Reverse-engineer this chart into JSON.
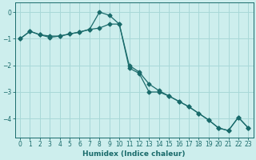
{
  "line1_x": [
    0,
    1,
    2,
    3,
    4,
    5,
    6,
    7,
    8,
    9,
    10,
    11,
    12,
    13,
    14,
    15,
    16,
    17,
    18,
    19,
    20,
    21,
    22,
    23
  ],
  "line1_y": [
    -1.0,
    -0.72,
    -0.85,
    -0.95,
    -0.9,
    -0.82,
    -0.75,
    -0.65,
    0.0,
    -0.12,
    -0.45,
    -2.1,
    -2.3,
    -3.0,
    -3.0,
    -3.15,
    -3.35,
    -3.55,
    -3.8,
    -4.05,
    -4.35,
    -4.45,
    -3.95,
    -4.35
  ],
  "line2_x": [
    0,
    1,
    2,
    3,
    4,
    5,
    6,
    7,
    8,
    9,
    10,
    11,
    12,
    13,
    14,
    15,
    16,
    17,
    18,
    19,
    20,
    21,
    22,
    23
  ],
  "line2_y": [
    -1.0,
    -0.72,
    -0.85,
    -0.9,
    -0.9,
    -0.82,
    -0.75,
    -0.65,
    -0.6,
    -0.45,
    -0.45,
    -2.0,
    -2.25,
    -2.7,
    -2.95,
    -3.15,
    -3.35,
    -3.55,
    -3.8,
    -4.05,
    -4.35,
    -4.45,
    -3.95,
    -4.35
  ],
  "line_color": "#1a6b6b",
  "marker": "D",
  "marker_size": 2.5,
  "background_color": "#cdeeed",
  "grid_color": "#a8d8d8",
  "xlabel": "Humidex (Indice chaleur)",
  "xlim": [
    -0.5,
    23.5
  ],
  "ylim": [
    -4.7,
    0.35
  ],
  "yticks": [
    0,
    -1,
    -2,
    -3,
    -4
  ],
  "xticks": [
    0,
    1,
    2,
    3,
    4,
    5,
    6,
    7,
    8,
    9,
    10,
    11,
    12,
    13,
    14,
    15,
    16,
    17,
    18,
    19,
    20,
    21,
    22,
    23
  ],
  "tick_labelsize": 5.5,
  "xlabel_fontsize": 6.5
}
